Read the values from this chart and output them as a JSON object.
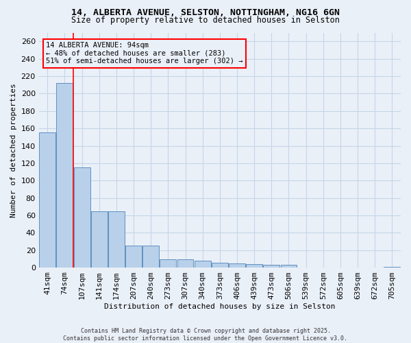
{
  "title1": "14, ALBERTA AVENUE, SELSTON, NOTTINGHAM, NG16 6GN",
  "title2": "Size of property relative to detached houses in Selston",
  "xlabel": "Distribution of detached houses by size in Selston",
  "ylabel": "Number of detached properties",
  "categories": [
    "41sqm",
    "74sqm",
    "107sqm",
    "141sqm",
    "174sqm",
    "207sqm",
    "240sqm",
    "273sqm",
    "307sqm",
    "340sqm",
    "373sqm",
    "406sqm",
    "439sqm",
    "473sqm",
    "506sqm",
    "539sqm",
    "572sqm",
    "605sqm",
    "639sqm",
    "672sqm",
    "705sqm"
  ],
  "values": [
    155,
    212,
    115,
    65,
    65,
    25,
    25,
    10,
    10,
    8,
    6,
    5,
    4,
    3,
    3,
    0,
    0,
    0,
    0,
    0,
    1
  ],
  "bar_color": "#b8d0ea",
  "bar_edge_color": "#6090c0",
  "red_line_x": 1.52,
  "annotation_text": "14 ALBERTA AVENUE: 94sqm\n← 48% of detached houses are smaller (283)\n51% of semi-detached houses are larger (302) →",
  "background_color": "#eaf0f8",
  "grid_color": "#c5d5e8",
  "ylim": [
    0,
    270
  ],
  "yticks": [
    0,
    20,
    40,
    60,
    80,
    100,
    120,
    140,
    160,
    180,
    200,
    220,
    240,
    260
  ],
  "footer1": "Contains HM Land Registry data © Crown copyright and database right 2025.",
  "footer2": "Contains public sector information licensed under the Open Government Licence v3.0."
}
